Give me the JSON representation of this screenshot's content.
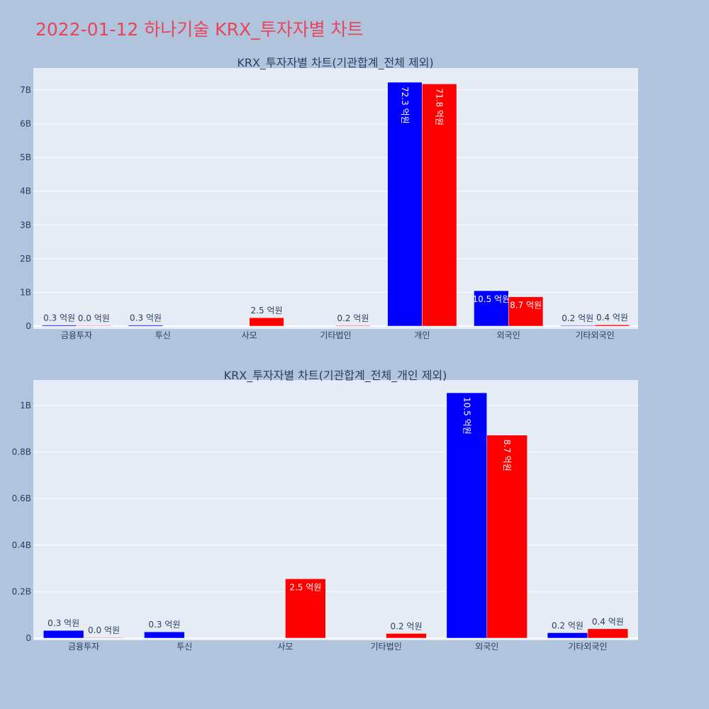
{
  "title": "2022-01-12 하나기술 KRX_투자자별 차트",
  "colors": {
    "buy": "#0000ff",
    "sell": "#ff0000",
    "plot_bg": "#e5ecf6",
    "page_bg": "#b0c4de",
    "title": "#e8455a"
  },
  "chart_data": [
    {
      "type": "bar",
      "title": "KRX_투자자별 차트(기관합계_전체 제외)",
      "categories": [
        "금융투자",
        "투신",
        "사모",
        "기타법인",
        "개인",
        "외국인",
        "기타외국인"
      ],
      "yticks": [
        0,
        1000000000,
        2000000000,
        3000000000,
        4000000000,
        5000000000,
        6000000000,
        7000000000
      ],
      "ytick_labels": [
        "0",
        "1B",
        "2B",
        "3B",
        "4B",
        "5B",
        "6B",
        "7B"
      ],
      "ylim": [
        0,
        7650000000
      ],
      "series": [
        {
          "values": [
            30000000,
            30000000,
            null,
            null,
            7230000000,
            1050000000,
            20000000
          ],
          "labels": [
            "0.3 억원",
            "0.3 억원",
            "",
            "",
            "72.3 억원",
            "10.5 억원",
            "0.2 억원"
          ]
        },
        {
          "values": [
            1000000,
            null,
            250000000,
            20000000,
            7180000000,
            870000000,
            40000000
          ],
          "labels": [
            "0.0 억원",
            "",
            "2.5 억원",
            "0.2 억원",
            "71.8 억원",
            "8.7 억원",
            "0.4 억원"
          ]
        }
      ]
    },
    {
      "type": "bar",
      "title": "KRX_투자자별 차트(기관합계_전체_개인 제외)",
      "categories": [
        "금융투자",
        "투신",
        "사모",
        "기타법인",
        "외국인",
        "기타외국인"
      ],
      "yticks": [
        0,
        200000000,
        400000000,
        600000000,
        800000000,
        1000000000
      ],
      "ytick_labels": [
        "0",
        "0.2B",
        "0.4B",
        "0.6B",
        "0.8B",
        "1B"
      ],
      "ylim": [
        0,
        1110000000
      ],
      "series": [
        {
          "values": [
            33000000,
            27000000,
            null,
            null,
            1055000000,
            23000000
          ],
          "labels": [
            "0.3 억원",
            "0.3 억원",
            "",
            "",
            "10.5 억원",
            "0.2 억원"
          ]
        },
        {
          "values": [
            1000000,
            null,
            255000000,
            20000000,
            873000000,
            40000000
          ],
          "labels": [
            "0.0 억원",
            "",
            "2.5 억원",
            "0.2 억원",
            "8.7 억원",
            "0.4 억원"
          ]
        }
      ]
    }
  ]
}
